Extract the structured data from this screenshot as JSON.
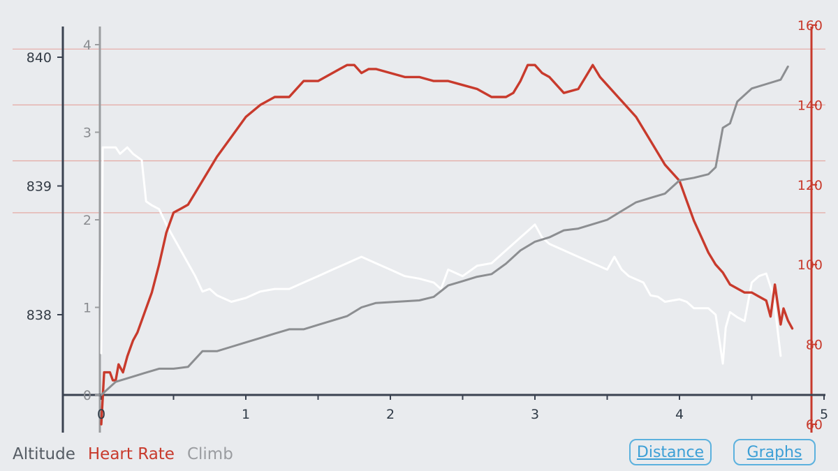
{
  "chart_data": {
    "type": "line",
    "xlabel": "",
    "x_ticks": [
      "0",
      "1",
      "2",
      "3",
      "4",
      "5"
    ],
    "xlim": [
      0,
      5
    ],
    "axes": {
      "altitude": {
        "ticks": [
          "838",
          "839",
          "840"
        ],
        "ylim": [
          837.38,
          840.24
        ],
        "color": "#333b45"
      },
      "climb": {
        "ticks": [
          "0",
          "1",
          "2",
          "3",
          "4"
        ],
        "ylim": [
          0,
          4.2
        ],
        "color": "#8a8c90"
      },
      "heart_rate": {
        "ticks": [
          "60",
          "80",
          "100",
          "120",
          "140",
          "160"
        ],
        "ylim": [
          60,
          160
        ],
        "color": "#c83a2c"
      }
    },
    "hr_gridlines": [
      113,
      126,
      140,
      154
    ],
    "series": [
      {
        "name": "Altitude",
        "color": "#ffffff",
        "axis": "altitude",
        "x": [
          0,
          0.01,
          0.05,
          0.1,
          0.13,
          0.18,
          0.22,
          0.28,
          0.31,
          0.35,
          0.4,
          0.45,
          0.5,
          0.55,
          0.6,
          0.65,
          0.7,
          0.75,
          0.8,
          0.9,
          1.0,
          1.1,
          1.2,
          1.3,
          1.4,
          1.5,
          1.6,
          1.7,
          1.8,
          1.9,
          2.0,
          2.1,
          2.2,
          2.3,
          2.35,
          2.4,
          2.5,
          2.6,
          2.7,
          2.8,
          2.9,
          2.95,
          3.0,
          3.05,
          3.1,
          3.2,
          3.3,
          3.4,
          3.5,
          3.55,
          3.6,
          3.65,
          3.75,
          3.8,
          3.85,
          3.9,
          4.0,
          4.05,
          4.1,
          4.2,
          4.25,
          4.3,
          4.32,
          4.35,
          4.4,
          4.45,
          4.5,
          4.55,
          4.6,
          4.65,
          4.7
        ],
        "y": [
          837.7,
          839.3,
          839.3,
          839.3,
          839.25,
          839.3,
          839.25,
          839.2,
          838.88,
          838.85,
          838.82,
          838.7,
          838.6,
          838.5,
          838.4,
          838.3,
          838.18,
          838.2,
          838.15,
          838.1,
          838.13,
          838.18,
          838.2,
          838.2,
          838.25,
          838.3,
          838.35,
          838.4,
          838.45,
          838.4,
          838.35,
          838.3,
          838.28,
          838.25,
          838.2,
          838.35,
          838.3,
          838.38,
          838.4,
          838.5,
          838.6,
          838.65,
          838.7,
          838.6,
          838.55,
          838.5,
          838.45,
          838.4,
          838.35,
          838.45,
          838.35,
          838.3,
          838.25,
          838.15,
          838.14,
          838.1,
          838.12,
          838.1,
          838.05,
          838.05,
          838.0,
          837.62,
          837.9,
          838.02,
          837.98,
          837.95,
          838.25,
          838.3,
          838.32,
          838.15,
          837.68
        ]
      },
      {
        "name": "Heart Rate",
        "color": "#c83a2c",
        "axis": "heart_rate",
        "x": [
          0,
          0.02,
          0.04,
          0.06,
          0.08,
          0.1,
          0.12,
          0.15,
          0.18,
          0.2,
          0.22,
          0.25,
          0.3,
          0.35,
          0.4,
          0.45,
          0.5,
          0.55,
          0.6,
          0.65,
          0.7,
          0.8,
          0.9,
          1.0,
          1.1,
          1.2,
          1.3,
          1.4,
          1.5,
          1.6,
          1.65,
          1.7,
          1.75,
          1.8,
          1.85,
          1.9,
          2.0,
          2.1,
          2.2,
          2.3,
          2.4,
          2.5,
          2.6,
          2.7,
          2.8,
          2.85,
          2.9,
          2.95,
          3.0,
          3.05,
          3.1,
          3.2,
          3.3,
          3.35,
          3.4,
          3.45,
          3.5,
          3.6,
          3.7,
          3.8,
          3.9,
          4.0,
          4.05,
          4.1,
          4.15,
          4.2,
          4.25,
          4.3,
          4.35,
          4.4,
          4.45,
          4.5,
          4.55,
          4.6,
          4.63,
          4.66,
          4.7,
          4.72,
          4.75,
          4.78
        ],
        "y": [
          60,
          73,
          73,
          73,
          71,
          71,
          75,
          73,
          77,
          79,
          81,
          83,
          88,
          93,
          100,
          108,
          113,
          114,
          115,
          118,
          121,
          127,
          132,
          137,
          140,
          142,
          142,
          146,
          146,
          148,
          149,
          150,
          150,
          148,
          149,
          149,
          148,
          147,
          147,
          146,
          146,
          145,
          144,
          142,
          142,
          143,
          146,
          150,
          150,
          148,
          147,
          143,
          144,
          147,
          150,
          147,
          145,
          141,
          137,
          131,
          125,
          121,
          116,
          111,
          107,
          103,
          100,
          98,
          95,
          94,
          93,
          93,
          92,
          91,
          87,
          95,
          85,
          89,
          86,
          84
        ]
      },
      {
        "name": "Climb",
        "color": "#8c8e91",
        "axis": "climb",
        "x": [
          0,
          0.1,
          0.2,
          0.3,
          0.4,
          0.5,
          0.6,
          0.7,
          0.8,
          0.9,
          1.0,
          1.1,
          1.2,
          1.3,
          1.4,
          1.5,
          1.6,
          1.7,
          1.8,
          1.9,
          2.0,
          2.1,
          2.2,
          2.3,
          2.4,
          2.5,
          2.6,
          2.7,
          2.8,
          2.9,
          3.0,
          3.1,
          3.2,
          3.3,
          3.4,
          3.5,
          3.6,
          3.7,
          3.8,
          3.9,
          4.0,
          4.1,
          4.2,
          4.25,
          4.3,
          4.35,
          4.4,
          4.5,
          4.6,
          4.7,
          4.75
        ],
        "y": [
          0,
          0.15,
          0.2,
          0.25,
          0.3,
          0.3,
          0.32,
          0.5,
          0.5,
          0.55,
          0.6,
          0.65,
          0.7,
          0.75,
          0.75,
          0.8,
          0.85,
          0.9,
          1.0,
          1.05,
          1.06,
          1.07,
          1.08,
          1.12,
          1.25,
          1.3,
          1.35,
          1.38,
          1.5,
          1.65,
          1.75,
          1.8,
          1.88,
          1.9,
          1.95,
          2.0,
          2.1,
          2.2,
          2.25,
          2.3,
          2.45,
          2.48,
          2.52,
          2.6,
          3.05,
          3.1,
          3.35,
          3.5,
          3.55,
          3.6,
          3.75
        ]
      }
    ]
  },
  "legend": {
    "altitude": "Altitude",
    "heart_rate": "Heart Rate",
    "climb": "Climb"
  },
  "buttons": {
    "distance": "Distance",
    "graphs": "Graphs"
  }
}
